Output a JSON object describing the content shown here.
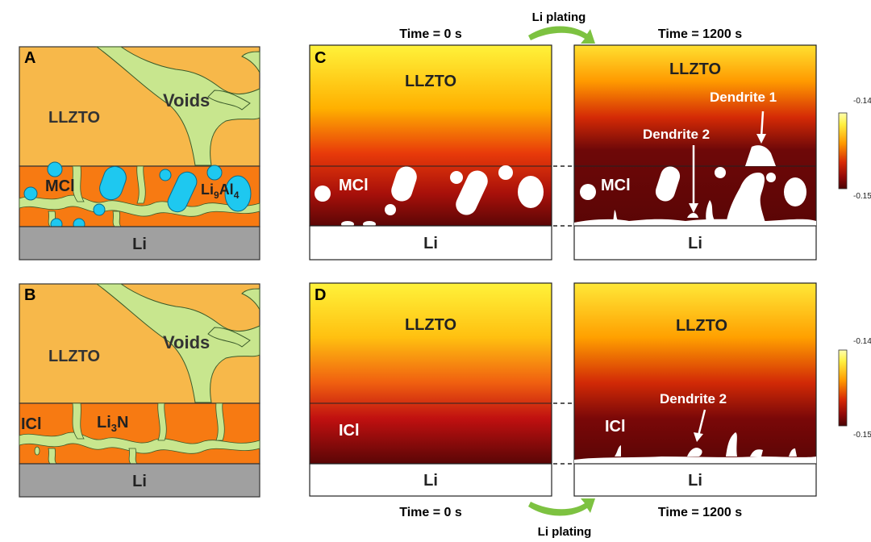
{
  "panel_a": {
    "letter": "A",
    "llzto": "LLZTO",
    "voids": "Voids",
    "mci": "MCl",
    "li9al4_base": "Li",
    "li9al4_sub": "9",
    "li9al4_mid": "Al",
    "li9al4_sub2": "4",
    "li": "Li"
  },
  "panel_b": {
    "letter": "B",
    "llzto": "LLZTO",
    "voids": "Voids",
    "ici": "ICl",
    "li3n_base": "Li",
    "li3n_sub": "3",
    "li3n_end": "N",
    "li": "Li"
  },
  "panel_c": {
    "letter": "C",
    "time_left": "Time = 0 s",
    "time_right": "Time = 1200 s",
    "llzto": "LLZTO",
    "mci": "MCl",
    "li": "Li",
    "dendrite1": "Dendrite 1",
    "dendrite2": "Dendrite 2",
    "arrow_label": "Li plating"
  },
  "panel_d": {
    "letter": "D",
    "time_left": "Time = 0 s",
    "time_right": "Time = 1200 s",
    "llzto": "LLZTO",
    "ici": "ICl",
    "li": "Li",
    "dendrite2": "Dendrite 2",
    "arrow_label": "Li plating"
  },
  "colorbar_top": {
    "max": "-0.14",
    "min": "-0.15"
  },
  "colorbar_bottom": {
    "max": "-0.14",
    "min": "-0.15"
  },
  "colors": {
    "llzto": "#F7B84A",
    "voids": "#C8E68E",
    "interlayer": "#F77A12",
    "li9al4": "#1EC8F0",
    "li": "#A0A0A0",
    "arrow": "#7DC241"
  }
}
